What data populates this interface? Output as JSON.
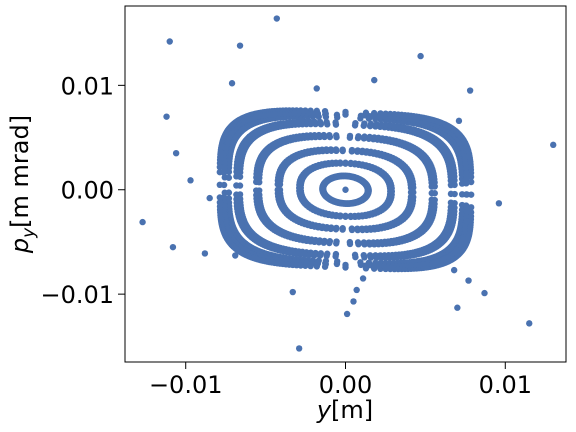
{
  "chart_data": {
    "type": "scatter",
    "title": "",
    "xlabel": {
      "var": "y",
      "unit": "[m]"
    },
    "ylabel": {
      "var": "p",
      "sub": "y",
      "unit": "[m mrad]"
    },
    "xlim": [
      -0.0138,
      0.0138
    ],
    "ylim": [
      -0.0165,
      0.0176
    ],
    "xticks": [
      -0.01,
      0.0,
      0.01
    ],
    "xtick_labels": [
      "−0.01",
      "0.00",
      "0.01"
    ],
    "yticks": [
      -0.01,
      0.0,
      0.01
    ],
    "ytick_labels": [
      "−0.01",
      "0.00",
      "0.01"
    ],
    "grid": false,
    "legend": "none",
    "marker_color": "#4a72b0",
    "series": [
      {
        "rings": [
          {
            "a": 0.0014,
            "b": 0.0013
          },
          {
            "a": 0.0028,
            "b": 0.0025
          },
          {
            "a": 0.0041,
            "b": 0.0037
          },
          {
            "a": 0.0054,
            "b": 0.005
          },
          {
            "a": 0.0066,
            "b": 0.0062
          },
          {
            "a": 0.0073,
            "b": 0.0069
          },
          {
            "a": 0.0076,
            "b": 0.0072
          }
        ],
        "scattered_points": [
          [
            0.0,
            0.0
          ],
          [
            -0.0043,
            0.0164
          ],
          [
            -0.011,
            0.0142
          ],
          [
            -0.0066,
            0.0138
          ],
          [
            0.0047,
            0.0128
          ],
          [
            0.0018,
            0.0105
          ],
          [
            -0.0071,
            0.0102
          ],
          [
            -0.0018,
            0.0097
          ],
          [
            0.0078,
            0.0095
          ],
          [
            -0.0112,
            0.007
          ],
          [
            0.0071,
            0.0066
          ],
          [
            0.013,
            0.0043
          ],
          [
            -0.0106,
            0.0035
          ],
          [
            -0.0097,
            0.0009
          ],
          [
            -0.0085,
            -0.0008
          ],
          [
            0.0096,
            -0.0013
          ],
          [
            -0.0127,
            -0.0031
          ],
          [
            -0.0108,
            -0.0055
          ],
          [
            -0.0088,
            -0.0061
          ],
          [
            -0.0069,
            -0.0063
          ],
          [
            0.0068,
            -0.0077
          ],
          [
            0.0077,
            -0.0087
          ],
          [
            0.0011,
            -0.0085
          ],
          [
            0.0007,
            -0.0096
          ],
          [
            -0.0033,
            -0.0098
          ],
          [
            0.0087,
            -0.0099
          ],
          [
            0.0005,
            -0.0107
          ],
          [
            0.007,
            -0.0113
          ],
          [
            0.0001,
            -0.0119
          ],
          [
            0.0115,
            -0.0128
          ],
          [
            -0.0029,
            -0.0152
          ]
        ]
      }
    ]
  }
}
